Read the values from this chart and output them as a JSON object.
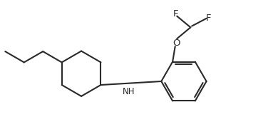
{
  "background_color": "#ffffff",
  "line_color": "#2a2a2a",
  "line_width": 1.5,
  "font_size": 8.5,
  "fig_width": 3.9,
  "fig_height": 1.92,
  "dpi": 100,
  "xlim": [
    0.0,
    10.5
  ],
  "ylim": [
    0.2,
    5.5
  ]
}
